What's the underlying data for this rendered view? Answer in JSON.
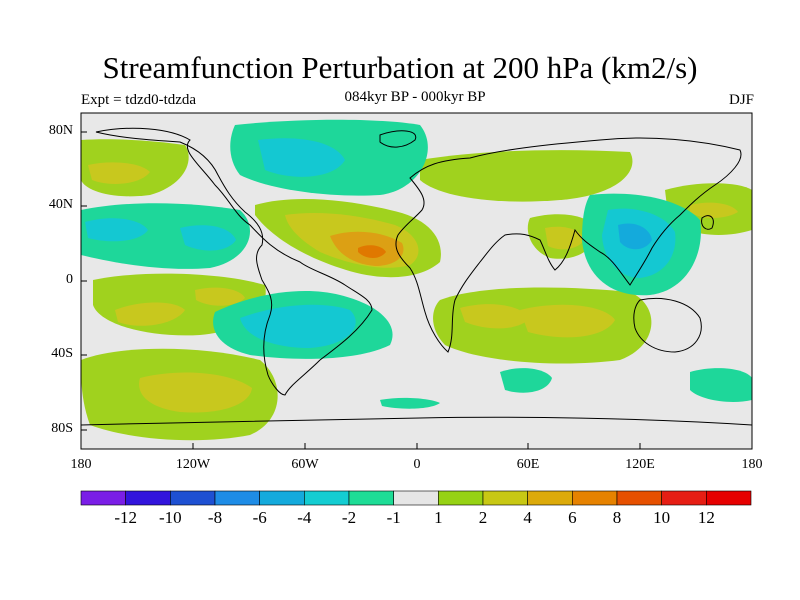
{
  "title": "Streamfunction Perturbation at 200 hPa (km2/s)",
  "subtitle": "084kyr BP - 000kyr BP",
  "left_label": "Expt = tdzd0-tdzda",
  "right_label": "DJF",
  "lat_labels": [
    "80N",
    "40N",
    "0",
    "40S",
    "80S"
  ],
  "lon_labels": [
    "180",
    "120W",
    "60W",
    "0",
    "60E",
    "120E",
    "180"
  ],
  "colorbar": {
    "labels": [
      "-12",
      "-10",
      "-8",
      "-6",
      "-4",
      "-2",
      "-1",
      "1",
      "2",
      "4",
      "6",
      "8",
      "10",
      "12"
    ],
    "colors": [
      "#7a1ee6",
      "#3214dc",
      "#1e50d2",
      "#1e8ce6",
      "#14aadc",
      "#14cdd2",
      "#1edc96",
      "#e6e6e6",
      "#96d214",
      "#c8c814",
      "#dcaa0a",
      "#e68200",
      "#e65000",
      "#e61e14",
      "#e60000"
    ]
  },
  "colors": {
    "neutral": "#e8e8e8",
    "pos1": "#a0d21e",
    "pos2": "#c8c81e",
    "pos3": "#dca014",
    "pos4": "#e07800",
    "neg1": "#1ed79a",
    "neg2": "#14c8d2",
    "neg3": "#14aadc"
  }
}
